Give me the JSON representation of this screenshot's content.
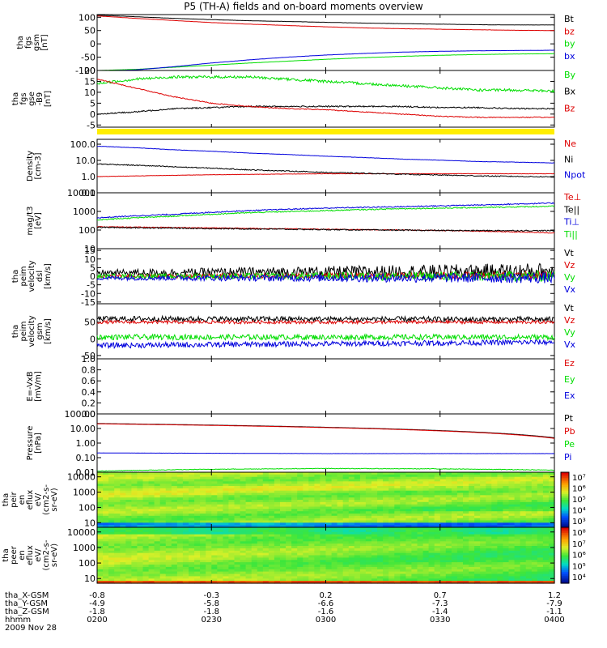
{
  "title": "P5 (TH-A) fields and on-board moments overview",
  "colors": {
    "black": "#000000",
    "red": "#dd0000",
    "green": "#00dd00",
    "blue": "#0000dd",
    "yellow": "#ffee00"
  },
  "chart_data": [
    {
      "type": "line",
      "id": "fgs-gsm",
      "ylabel": [
        "tha",
        "fgs",
        "gsm",
        "[nT]"
      ],
      "yticks": [
        100,
        50,
        0,
        -50,
        -100
      ],
      "ylim": [
        -100,
        110
      ],
      "series": [
        {
          "name": "Bt",
          "color": "#000000",
          "x": [
            0,
            10,
            20,
            30,
            40,
            50,
            60,
            70,
            80,
            90,
            100,
            110,
            120
          ],
          "y": [
            108,
            102,
            96,
            91,
            87,
            84,
            81,
            78,
            76,
            74,
            72,
            71,
            71
          ],
          "noise": 0.3
        },
        {
          "name": "bz",
          "color": "#dd0000",
          "x": [
            0,
            10,
            20,
            30,
            40,
            50,
            60,
            70,
            80,
            90,
            100,
            110,
            120
          ],
          "y": [
            105,
            96,
            88,
            80,
            74,
            69,
            64,
            60,
            57,
            55,
            53,
            51,
            50
          ],
          "noise": 0.3
        },
        {
          "name": "by",
          "color": "#00dd00",
          "x": [
            0,
            10,
            20,
            30,
            40,
            50,
            60,
            70,
            80,
            90,
            100,
            110,
            120
          ],
          "y": [
            -100,
            -96,
            -88,
            -80,
            -72,
            -65,
            -58,
            -52,
            -47,
            -43,
            -40,
            -38,
            -37
          ],
          "noise": 0.3
        },
        {
          "name": "bx",
          "color": "#0000dd",
          "x": [
            0,
            10,
            20,
            30,
            40,
            50,
            60,
            70,
            80,
            90,
            100,
            110,
            120
          ],
          "y": [
            -102,
            -98,
            -86,
            -72,
            -60,
            -50,
            -42,
            -36,
            -31,
            -28,
            -26,
            -25,
            -24
          ],
          "noise": 0.3
        }
      ]
    },
    {
      "type": "line",
      "id": "fgs-gse",
      "ylabel": [
        "tha",
        "fgs",
        "gse",
        "-B9",
        "[nT]"
      ],
      "yticks": [
        20,
        15,
        10,
        5,
        0,
        -5
      ],
      "ylim": [
        -6,
        20
      ],
      "series": [
        {
          "name": "By",
          "color": "#00dd00",
          "x": [
            0,
            10,
            20,
            30,
            40,
            50,
            60,
            70,
            80,
            90,
            100,
            110,
            120
          ],
          "y": [
            14,
            16,
            17,
            17,
            17,
            16,
            15,
            14,
            13,
            12,
            11,
            11,
            10.5
          ],
          "noise": 0.6
        },
        {
          "name": "Bx",
          "color": "#000000",
          "x": [
            0,
            10,
            20,
            30,
            40,
            50,
            60,
            70,
            80,
            90,
            100,
            110,
            120
          ],
          "y": [
            0,
            1,
            2.5,
            3,
            3.5,
            3.5,
            3.5,
            3.5,
            3.5,
            3,
            3,
            2.5,
            2.5
          ],
          "noise": 0.3
        },
        {
          "name": "Bz",
          "color": "#dd0000",
          "x": [
            0,
            10,
            20,
            30,
            40,
            50,
            60,
            70,
            80,
            90,
            100,
            110,
            120
          ],
          "y": [
            16,
            12,
            8,
            5,
            3.5,
            2.5,
            2,
            1,
            0,
            -1,
            -1.5,
            -1.5,
            -1.5
          ],
          "noise": 0.2
        }
      ]
    },
    {
      "type": "line",
      "id": "density",
      "scale": "log",
      "ylabel": [
        "Density",
        "[cm-3]"
      ],
      "yticks": [
        "100.0",
        "10.0",
        "1.0",
        "0.1"
      ],
      "ylim": [
        0.1,
        200
      ],
      "series": [
        {
          "name": "Ne",
          "color": "#dd0000",
          "x": [
            0,
            30,
            60,
            90,
            120
          ],
          "y": [
            1.0,
            1.3,
            1.5,
            1.5,
            1.5
          ],
          "noise": 0.01
        },
        {
          "name": "Ni",
          "color": "#000000",
          "x": [
            0,
            20,
            40,
            60,
            80,
            100,
            120
          ],
          "y": [
            6,
            4,
            2.6,
            1.8,
            1.4,
            1.1,
            0.95
          ],
          "noise": 0.03
        },
        {
          "name": "Npot",
          "color": "#0000dd",
          "x": [
            0,
            20,
            40,
            60,
            80,
            100,
            120
          ],
          "y": [
            75,
            45,
            28,
            18,
            12,
            8.5,
            7
          ],
          "noise": 0.01
        }
      ]
    },
    {
      "type": "line",
      "id": "temperature",
      "scale": "log",
      "ylabel": [
        "mag/t3",
        "[eV]"
      ],
      "yticks": [
        "10000",
        "1000",
        "100",
        "10"
      ],
      "ylim": [
        10,
        10000
      ],
      "series": [
        {
          "name": "Te⊥",
          "color": "#dd0000",
          "x": [
            0,
            30,
            60,
            90,
            120
          ],
          "y": [
            150,
            130,
            110,
            95,
            70
          ],
          "noise": 0.02
        },
        {
          "name": "Te||",
          "color": "#000000",
          "x": [
            0,
            30,
            60,
            90,
            120
          ],
          "y": [
            140,
            120,
            105,
            95,
            92
          ],
          "noise": 0.03
        },
        {
          "name": "Ti⊥",
          "color": "#0000dd",
          "x": [
            0,
            20,
            40,
            60,
            80,
            100,
            120
          ],
          "y": [
            450,
            700,
            1100,
            1500,
            1800,
            2200,
            2800
          ],
          "noise": 0.03
        },
        {
          "name": "Ti||",
          "color": "#00dd00",
          "x": [
            0,
            20,
            40,
            60,
            80,
            100,
            120
          ],
          "y": [
            350,
            550,
            850,
            1100,
            1400,
            1600,
            1900
          ],
          "noise": 0.03
        }
      ]
    },
    {
      "type": "line",
      "id": "velocity-dsl",
      "ylabel": [
        "tha",
        "peim",
        "velocity",
        "dsl",
        "[km/s]"
      ],
      "yticks": [
        15,
        10,
        5,
        0,
        -5,
        -10,
        -15
      ],
      "ylim": [
        -16,
        16
      ],
      "series": [
        {
          "name": "Vt",
          "color": "#000000",
          "x": [
            0,
            120
          ],
          "y": [
            2,
            3
          ],
          "noise": 3
        },
        {
          "name": "Vz",
          "color": "#dd0000",
          "x": [
            0,
            120
          ],
          "y": [
            0,
            0.5
          ],
          "noise": 1.5
        },
        {
          "name": "Vy",
          "color": "#00dd00",
          "x": [
            0,
            120
          ],
          "y": [
            0,
            0
          ],
          "noise": 2
        },
        {
          "name": "Vx",
          "color": "#0000dd",
          "x": [
            0,
            120
          ],
          "y": [
            -1,
            -1
          ],
          "noise": 2
        }
      ]
    },
    {
      "type": "line",
      "id": "velocity-gsm",
      "ylabel": [
        "tha",
        "peim",
        "velocity",
        "gsm",
        "[km/s]"
      ],
      "yticks": [
        50,
        0,
        -50
      ],
      "ylim": [
        -60,
        105
      ],
      "series": [
        {
          "name": "Vt",
          "color": "#000000",
          "x": [
            0,
            120
          ],
          "y": [
            60,
            58
          ],
          "noise": 8
        },
        {
          "name": "Vz",
          "color": "#dd0000",
          "x": [
            0,
            120
          ],
          "y": [
            50,
            50
          ],
          "noise": 5
        },
        {
          "name": "Vy",
          "color": "#00dd00",
          "x": [
            0,
            120
          ],
          "y": [
            5,
            5
          ],
          "noise": 8
        },
        {
          "name": "Vx",
          "color": "#0000dd",
          "x": [
            0,
            120
          ],
          "y": [
            -20,
            -10
          ],
          "noise": 8
        }
      ]
    },
    {
      "type": "line",
      "id": "efield",
      "ylabel": [
        "E=-VxB",
        "[mV/m]"
      ],
      "yticks": [
        "1.0",
        "0.8",
        "0.6",
        "0.4",
        "0.2",
        "0.0"
      ],
      "ylim": [
        0,
        1
      ],
      "series": [
        {
          "name": "Ez",
          "color": "#dd0000",
          "x": [],
          "y": []
        },
        {
          "name": "Ey",
          "color": "#00dd00",
          "x": [],
          "y": []
        },
        {
          "name": "Ex",
          "color": "#0000dd",
          "x": [],
          "y": []
        }
      ]
    },
    {
      "type": "line",
      "id": "pressure",
      "scale": "log",
      "ylabel": [
        "Pressure",
        "[nPa]"
      ],
      "yticks": [
        "100.00",
        "10.00",
        "1.00",
        "0.10",
        "0.01"
      ],
      "ylim": [
        0.01,
        100
      ],
      "series": [
        {
          "name": "Pt",
          "color": "#000000",
          "x": [
            0,
            120
          ],
          "y": [
            22,
            2.3
          ],
          "noise": 0
        },
        {
          "name": "Pb",
          "color": "#dd0000",
          "x": [
            0,
            120
          ],
          "y": [
            21,
            2.1
          ],
          "noise": 0
        },
        {
          "name": "Pe",
          "color": "#00dd00",
          "x": [
            0,
            30,
            60,
            90,
            120
          ],
          "y": [
            0.012,
            0.016,
            0.018,
            0.017,
            0.014
          ],
          "noise": 0.02
        },
        {
          "name": "Pi",
          "color": "#0000dd",
          "x": [
            0,
            30,
            60,
            90,
            120
          ],
          "y": [
            0.21,
            0.2,
            0.19,
            0.19,
            0.19
          ],
          "noise": 0.005
        }
      ]
    },
    {
      "type": "heatmap",
      "id": "ion-eflux",
      "scale": "log",
      "ylabel": [
        "tha",
        "peir",
        "en",
        "eflux",
        "eV/",
        "(cm2-s-",
        "sr-eV)"
      ],
      "yticks": [
        "10000",
        "1000",
        "100",
        "10"
      ],
      "ylim": [
        5,
        20000
      ],
      "colorbar": {
        "ticks": [
          "10⁷",
          "10⁶",
          "10⁵",
          "10⁴",
          "10³"
        ]
      }
    },
    {
      "type": "heatmap",
      "id": "electron-eflux",
      "scale": "log",
      "ylabel": [
        "tha",
        "peer",
        "en",
        "eflux",
        "eV/",
        "(cm2-s-",
        "sr-eV)"
      ],
      "yticks": [
        "10000",
        "1000",
        "100",
        "10"
      ],
      "ylim": [
        5,
        20000
      ],
      "colorbar": {
        "ticks": [
          "10⁸",
          "10⁷",
          "10⁶",
          "10⁵",
          "10⁴"
        ]
      }
    }
  ],
  "xaxis": {
    "rows": [
      {
        "label": "tha_X-GSM",
        "values": [
          "-0.8",
          "-0.3",
          "0.2",
          "0.7",
          "1.2"
        ]
      },
      {
        "label": "tha_Y-GSM",
        "values": [
          "-4.9",
          "-5.8",
          "-6.6",
          "-7.3",
          "-7.9"
        ]
      },
      {
        "label": "tha_Z-GSM",
        "values": [
          "-1.8",
          "-1.8",
          "-1.6",
          "-1.4",
          "-1.1"
        ]
      },
      {
        "label": "hhmm",
        "values": [
          "0200",
          "0230",
          "0300",
          "0330",
          "0400"
        ]
      }
    ],
    "date": "2009 Nov 28",
    "minutes": [
      0,
      30,
      60,
      90,
      120
    ]
  }
}
